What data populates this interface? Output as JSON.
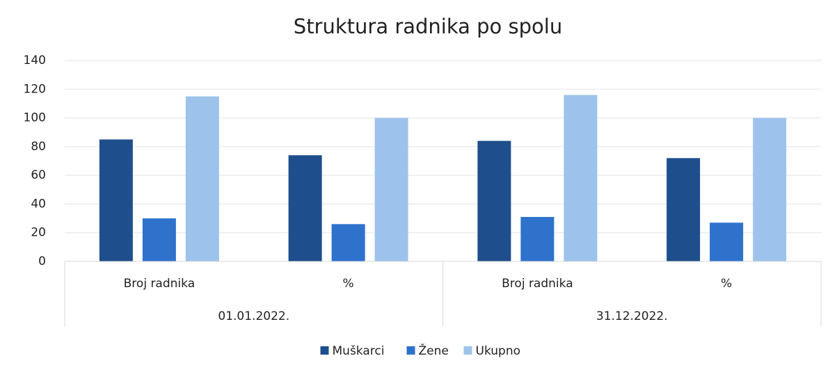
{
  "chart_data": {
    "type": "bar",
    "title": "Struktura radnika po spolu",
    "groups": [
      {
        "name": "01.01.2022.",
        "categories": [
          "Broj radnika",
          "%"
        ]
      },
      {
        "name": "31.12.2022.",
        "categories": [
          "Broj radnika",
          "%"
        ]
      }
    ],
    "series": [
      {
        "name": "Muškarci",
        "color": "#1f4e8c",
        "values": [
          85,
          74,
          84,
          72
        ]
      },
      {
        "name": "Žene",
        "color": "#2e72cc",
        "values": [
          30,
          26,
          31,
          27
        ]
      },
      {
        "name": "Ukupno",
        "color": "#9dc3ec",
        "values": [
          115,
          100,
          116,
          100
        ]
      }
    ],
    "ylim": [
      0,
      140
    ],
    "yticks": [
      0,
      20,
      40,
      60,
      80,
      100,
      120,
      140
    ],
    "grid": true,
    "legend": "bottom"
  }
}
